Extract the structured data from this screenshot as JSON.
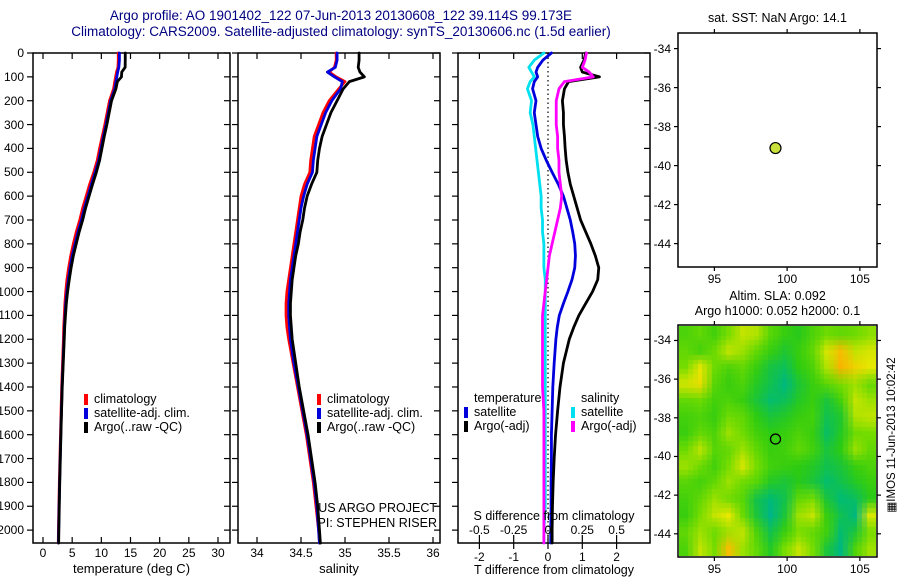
{
  "header": {
    "line1": "Argo profile: AO 1901402_122 07-Jun-2013 20130608_122 39.114S 99.173E",
    "line2": "Climatology: CARS2009. Satellite-adjusted climatology: synTS_20130606.nc (1.5d earlier)"
  },
  "colors": {
    "title": "#000080",
    "climatology": "#ff0000",
    "satellite_adj": "#0000dd",
    "argo": "#000000",
    "s_satellite": "#00e0f0",
    "s_argo": "#ff00ff",
    "sst_marker_fill": "#cbe13b"
  },
  "legend_profile": [
    {
      "label": "climatology",
      "color": "#ff0000"
    },
    {
      "label": "satellite-adj. clim.",
      "color": "#0000dd"
    },
    {
      "label": "Argo(..raw -QC)",
      "color": "#000000"
    }
  ],
  "legend_diff": {
    "col1_header": "temperature",
    "col2_header": "salinity",
    "col1": [
      {
        "label": "satellite",
        "color": "#0000dd"
      },
      {
        "label": "Argo(-adj)",
        "color": "#000000"
      }
    ],
    "col2": [
      {
        "label": "satellite",
        "color": "#00e0f0"
      },
      {
        "label": "Argo(-adj)",
        "color": "#ff00ff"
      }
    ]
  },
  "annotations": {
    "project_line1": "US ARGO PROJECT",
    "project_line2": "PI: STEPHEN RISER",
    "watermark": "▦IMOS 11-Jun-2013 10:02:42"
  },
  "chart_data": [
    {
      "id": "temperature_profile",
      "type": "line",
      "xlabel": "temperature (deg C)",
      "xlim": [
        -1.7,
        32.1
      ],
      "xticks": [
        0,
        5,
        10,
        15,
        20,
        25,
        30
      ],
      "ylim": [
        0,
        2054
      ],
      "yticks": [
        0,
        100,
        200,
        300,
        400,
        500,
        600,
        700,
        800,
        900,
        1000,
        1100,
        1200,
        1300,
        1400,
        1500,
        1600,
        1700,
        1800,
        1900,
        2000
      ],
      "depths": [
        0,
        30,
        60,
        80,
        100,
        120,
        150,
        200,
        250,
        300,
        350,
        400,
        450,
        500,
        550,
        600,
        650,
        700,
        750,
        800,
        850,
        900,
        950,
        1000,
        1050,
        1100,
        1150,
        1200,
        1300,
        1400,
        1500,
        1600,
        1700,
        1800,
        1900,
        2000,
        2054
      ],
      "series": [
        {
          "name": "climatology",
          "color": "#ff0000",
          "values": [
            12.9,
            12.9,
            12.85,
            12.6,
            12.45,
            12.3,
            12.1,
            11.4,
            11.0,
            10.6,
            10.15,
            9.7,
            9.3,
            8.7,
            8.0,
            7.4,
            6.8,
            6.3,
            5.7,
            5.2,
            4.75,
            4.4,
            4.1,
            3.9,
            3.75,
            3.65,
            3.55,
            3.5,
            3.35,
            3.2,
            3.1,
            3.0,
            2.9,
            2.8,
            2.72,
            2.65,
            2.62
          ]
        },
        {
          "name": "satellite-adj. clim.",
          "color": "#0000dd",
          "values": [
            13.1,
            13.1,
            13.0,
            12.8,
            12.65,
            12.5,
            12.3,
            11.6,
            11.2,
            10.8,
            10.35,
            9.95,
            9.55,
            8.95,
            8.3,
            7.7,
            7.1,
            6.6,
            6.0,
            5.5,
            5.0,
            4.65,
            4.35,
            4.1,
            3.9,
            3.78,
            3.67,
            3.6,
            3.43,
            3.27,
            3.16,
            3.05,
            2.95,
            2.85,
            2.76,
            2.68,
            2.65
          ]
        },
        {
          "name": "Argo(..raw -QC)",
          "color": "#000000",
          "values": [
            14.1,
            14.1,
            14.08,
            13.5,
            13.45,
            12.75,
            12.5,
            11.75,
            11.35,
            10.95,
            10.5,
            10.1,
            9.7,
            9.15,
            8.5,
            7.9,
            7.3,
            6.8,
            6.2,
            5.7,
            5.2,
            4.82,
            4.5,
            4.22,
            4.0,
            3.85,
            3.72,
            3.64,
            3.47,
            3.3,
            3.18,
            3.07,
            2.97,
            2.87,
            2.79,
            2.72,
            2.68
          ]
        }
      ]
    },
    {
      "id": "salinity_profile",
      "type": "line",
      "xlabel": "salinity",
      "xlim": [
        33.78,
        36.08
      ],
      "xticks": [
        34,
        34.5,
        35,
        35.5,
        36
      ],
      "ylim": [
        0,
        2054
      ],
      "depths": [
        0,
        30,
        60,
        80,
        100,
        120,
        150,
        200,
        250,
        300,
        350,
        400,
        450,
        500,
        550,
        600,
        650,
        700,
        750,
        800,
        850,
        900,
        950,
        1000,
        1050,
        1100,
        1150,
        1200,
        1300,
        1400,
        1500,
        1600,
        1700,
        1800,
        1900,
        2000,
        2054
      ],
      "series": [
        {
          "name": "climatology",
          "color": "#ff0000",
          "values": [
            34.9,
            34.9,
            34.88,
            34.82,
            34.9,
            35.0,
            34.93,
            34.82,
            34.75,
            34.7,
            34.65,
            34.63,
            34.61,
            34.6,
            34.54,
            34.5,
            34.48,
            34.46,
            34.44,
            34.42,
            34.4,
            34.38,
            34.36,
            34.34,
            34.33,
            34.33,
            34.34,
            34.36,
            34.41,
            34.46,
            34.51,
            34.56,
            34.6,
            34.64,
            34.67,
            34.7,
            34.71
          ]
        },
        {
          "name": "satellite-adj. clim.",
          "color": "#0000dd",
          "values": [
            34.91,
            34.91,
            34.89,
            34.8,
            34.88,
            34.97,
            34.95,
            34.85,
            34.78,
            34.73,
            34.68,
            34.66,
            34.64,
            34.63,
            34.57,
            34.53,
            34.5,
            34.48,
            34.46,
            34.44,
            34.42,
            34.4,
            34.38,
            34.37,
            34.36,
            34.36,
            34.37,
            34.38,
            34.42,
            34.47,
            34.52,
            34.57,
            34.61,
            34.65,
            34.68,
            34.7,
            34.71
          ]
        },
        {
          "name": "Argo(..raw -QC)",
          "color": "#000000",
          "values": [
            35.16,
            35.16,
            35.15,
            35.17,
            35.22,
            35.05,
            34.98,
            34.91,
            34.84,
            34.79,
            34.74,
            34.71,
            34.69,
            34.68,
            34.62,
            34.57,
            34.54,
            34.52,
            34.49,
            34.47,
            34.44,
            34.42,
            34.4,
            34.39,
            34.38,
            34.38,
            34.39,
            34.4,
            34.44,
            34.48,
            34.53,
            34.58,
            34.62,
            34.66,
            34.69,
            34.71,
            34.72
          ]
        }
      ]
    },
    {
      "id": "difference_profile",
      "type": "line",
      "xlabel_t": "T difference from climatology",
      "xlabel_s": "S difference from climatology",
      "xlim_t": [
        -2.62,
        2.97
      ],
      "xticks_t": [
        -2,
        -1,
        0,
        1,
        2
      ],
      "xticks_s": [
        -0.5,
        -0.25,
        0,
        0.25,
        0.5
      ],
      "ylim": [
        0,
        2054
      ],
      "zero_line": true,
      "depths": [
        0,
        30,
        60,
        80,
        100,
        120,
        150,
        200,
        250,
        300,
        350,
        400,
        450,
        500,
        550,
        600,
        650,
        700,
        750,
        800,
        850,
        900,
        950,
        1000,
        1050,
        1100,
        1150,
        1200,
        1300,
        1400,
        1500,
        1600,
        1700,
        1800,
        1900,
        2000,
        2054
      ],
      "series": [
        {
          "name": "T satellite",
          "axis": "T",
          "color": "#0000dd",
          "values": [
            0.1,
            -0.15,
            -0.3,
            -0.35,
            -0.3,
            -0.4,
            -0.45,
            -0.35,
            -0.4,
            -0.35,
            -0.3,
            -0.2,
            -0.05,
            0.12,
            0.3,
            0.45,
            0.55,
            0.65,
            0.72,
            0.78,
            0.8,
            0.78,
            0.7,
            0.58,
            0.45,
            0.33,
            0.27,
            0.23,
            0.18,
            0.14,
            0.12,
            0.1,
            0.1,
            0.09,
            0.09,
            0.08,
            0.08
          ]
        },
        {
          "name": "T Argo(-adj)",
          "axis": "T",
          "color": "#000000",
          "values": [
            1.1,
            1.05,
            0.95,
            1.0,
            1.5,
            0.6,
            0.48,
            0.42,
            0.45,
            0.45,
            0.48,
            0.5,
            0.53,
            0.58,
            0.65,
            0.75,
            0.85,
            0.95,
            1.1,
            1.25,
            1.38,
            1.48,
            1.45,
            1.3,
            1.1,
            0.9,
            0.75,
            0.62,
            0.45,
            0.35,
            0.28,
            0.22,
            0.18,
            0.15,
            0.13,
            0.12,
            0.12
          ]
        },
        {
          "name": "S satellite",
          "axis": "S",
          "color": "#00e0f0",
          "values": [
            -0.03,
            -0.1,
            -0.14,
            -0.12,
            -0.1,
            -0.13,
            -0.15,
            -0.12,
            -0.13,
            -0.11,
            -0.1,
            -0.09,
            -0.08,
            -0.07,
            -0.06,
            -0.05,
            -0.05,
            -0.04,
            -0.04,
            -0.03,
            -0.03,
            -0.03,
            -0.02,
            -0.02,
            -0.02,
            -0.02,
            -0.02,
            -0.02,
            -0.02,
            -0.02,
            -0.02,
            -0.02,
            -0.02,
            -0.02,
            -0.02,
            -0.03,
            -0.03
          ]
        },
        {
          "name": "S Argo(-adj)",
          "axis": "S",
          "color": "#ff00ff",
          "values": [
            0.28,
            0.27,
            0.25,
            0.3,
            0.33,
            0.12,
            0.08,
            0.06,
            0.06,
            0.06,
            0.07,
            0.07,
            0.08,
            0.08,
            0.09,
            0.1,
            0.09,
            0.07,
            0.05,
            0.03,
            0.01,
            0.0,
            -0.01,
            -0.02,
            -0.03,
            -0.04,
            -0.04,
            -0.04,
            -0.04,
            -0.04,
            -0.03,
            -0.03,
            -0.03,
            -0.03,
            -0.03,
            -0.03,
            -0.03
          ]
        }
      ]
    },
    {
      "id": "sst_map",
      "type": "scatter",
      "title": "sat. SST: NaN Argo: 14.1",
      "xlim": [
        92.5,
        106.2
      ],
      "ylim": [
        -45.2,
        -33.2
      ],
      "xticks": [
        95,
        100,
        105
      ],
      "yticks": [
        -34,
        -36,
        -38,
        -40,
        -42,
        -44
      ],
      "marker": {
        "lon": 99.2,
        "lat": -39.1,
        "fill": "#cbe13b"
      }
    },
    {
      "id": "sla_map",
      "type": "heatmap",
      "title_line1": "Altim. SLA: 0.092",
      "title_line2": "Argo h1000: 0.052 h2000: 0.1",
      "xlim": [
        92.5,
        106.2
      ],
      "ylim": [
        -45.2,
        -33.2
      ],
      "xticks": [
        95,
        100,
        105
      ],
      "yticks": [
        -34,
        -36,
        -38,
        -40,
        -42,
        -44
      ],
      "marker": {
        "lon": 99.2,
        "lat": -39.1
      },
      "colormap": [
        [
          -1,
          "#00a0c8"
        ],
        [
          -0.5,
          "#00bb77"
        ],
        [
          0,
          "#2ecc11"
        ],
        [
          0.35,
          "#77dd00"
        ],
        [
          0.65,
          "#e8e800"
        ],
        [
          1,
          "#ffa000"
        ]
      ],
      "grid": [
        [
          0.15,
          0.25,
          0.1,
          0.35,
          0.55,
          0.5,
          0.2,
          0.05,
          -0.05,
          0.15,
          0.3,
          0.25,
          0.3,
          0.4
        ],
        [
          0.25,
          0.1,
          0.3,
          0.55,
          0.45,
          0.25,
          0.05,
          -0.15,
          0.05,
          0.25,
          0.6,
          0.85,
          0.55,
          0.6
        ],
        [
          0.35,
          0.65,
          0.3,
          0.15,
          0.25,
          0.05,
          -0.25,
          -0.35,
          0.0,
          0.15,
          0.5,
          0.9,
          0.75,
          0.65
        ],
        [
          0.6,
          0.7,
          0.2,
          0.05,
          0.15,
          -0.1,
          -0.3,
          -0.55,
          -0.2,
          0.05,
          0.2,
          0.35,
          0.45,
          0.25
        ],
        [
          0.25,
          0.3,
          0.1,
          0.15,
          0.05,
          -0.2,
          -0.45,
          -0.35,
          -0.1,
          0.05,
          -0.2,
          0.1,
          0.55,
          0.45
        ],
        [
          0.1,
          0.15,
          0.05,
          0.3,
          0.25,
          0.0,
          -0.2,
          -0.1,
          0.05,
          0.1,
          -0.3,
          -0.15,
          0.5,
          0.55
        ],
        [
          0.05,
          0.25,
          0.15,
          0.45,
          0.3,
          0.1,
          0.0,
          0.05,
          0.15,
          0.05,
          -0.4,
          -0.1,
          0.3,
          0.35
        ],
        [
          0.3,
          0.55,
          0.2,
          0.25,
          0.45,
          0.25,
          0.05,
          0.1,
          0.25,
          0.1,
          -0.2,
          0.0,
          0.45,
          0.25
        ],
        [
          0.45,
          0.3,
          0.1,
          0.35,
          0.6,
          0.35,
          0.1,
          0.05,
          0.0,
          -0.1,
          -0.3,
          -0.2,
          0.05,
          0.15
        ],
        [
          0.2,
          0.1,
          0.25,
          0.45,
          0.3,
          0.2,
          -0.1,
          -0.2,
          -0.05,
          -0.2,
          -0.45,
          -0.3,
          -0.1,
          0.05
        ],
        [
          0.1,
          0.25,
          0.45,
          0.3,
          0.2,
          -0.3,
          -0.5,
          -0.3,
          0.25,
          0.35,
          -0.2,
          -0.5,
          -0.4,
          -0.05
        ],
        [
          0.05,
          0.35,
          0.55,
          0.65,
          0.3,
          -0.2,
          -0.6,
          -0.2,
          0.45,
          0.55,
          0.05,
          -0.3,
          -0.55,
          0.6
        ],
        [
          0.25,
          0.45,
          0.3,
          0.45,
          0.55,
          0.15,
          -0.3,
          0.05,
          0.35,
          0.25,
          0.1,
          -0.45,
          -0.2,
          0.35
        ],
        [
          0.15,
          0.55,
          0.35,
          0.85,
          0.45,
          0.25,
          -0.1,
          0.35,
          0.55,
          0.35,
          -0.2,
          -0.55,
          0.15,
          0.45
        ]
      ]
    }
  ]
}
